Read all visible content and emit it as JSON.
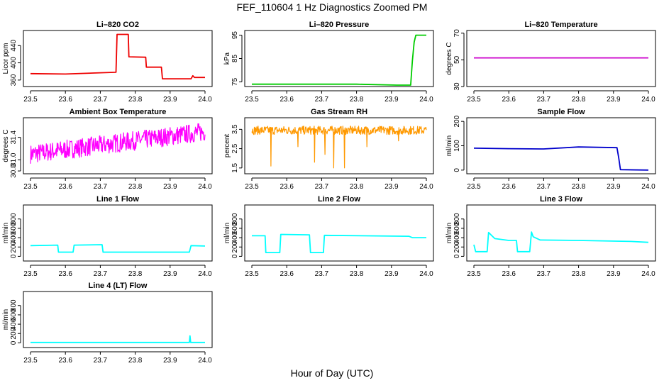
{
  "page": {
    "title": "FEF_110604  1 Hz Diagnostics Zoomed PM",
    "xlabel": "Hour of Day (UTC)"
  },
  "chart_data": [
    {
      "type": "line",
      "title": "Li–820 CO2",
      "ylabel": "Licor ppm",
      "color": "#ee0000",
      "xlim": [
        23.5,
        24.0
      ],
      "ylim": [
        345,
        475
      ],
      "xticks": [
        "23.5",
        "23.6",
        "23.7",
        "23.8",
        "23.9",
        "24.0"
      ],
      "yticks": [
        "360",
        "400",
        "440"
      ],
      "x": [
        23.5,
        23.6,
        23.7,
        23.745,
        23.748,
        23.78,
        23.782,
        23.83,
        23.832,
        23.875,
        23.878,
        23.96,
        23.965,
        23.97,
        24.0
      ],
      "y": [
        375,
        374,
        377,
        378,
        466,
        466,
        414,
        413,
        390,
        390,
        363,
        363,
        370,
        366,
        366
      ]
    },
    {
      "type": "line",
      "title": "Li–820 Pressure",
      "ylabel": "kPa",
      "color": "#00cc00",
      "xlim": [
        23.5,
        24.0
      ],
      "ylim": [
        73,
        97
      ],
      "xticks": [
        "23.5",
        "23.6",
        "23.7",
        "23.8",
        "23.9",
        "24.0"
      ],
      "yticks": [
        "75",
        "85",
        "95"
      ],
      "x": [
        23.5,
        23.6,
        23.7,
        23.8,
        23.915,
        23.955,
        23.96,
        23.965,
        23.97,
        23.98,
        24.0
      ],
      "y": [
        74,
        74,
        74,
        74,
        73.6,
        73.6,
        84,
        92,
        95,
        95,
        95
      ]
    },
    {
      "type": "line",
      "title": "Li–820 Temperature",
      "ylabel": "degrees C",
      "color": "#cc00cc",
      "xlim": [
        23.5,
        24.0
      ],
      "ylim": [
        30,
        72
      ],
      "xticks": [
        "23.5",
        "23.6",
        "23.7",
        "23.8",
        "23.9",
        "24.0"
      ],
      "yticks": [
        "30",
        "50",
        "70"
      ],
      "x": [
        23.5,
        24.0
      ],
      "y": [
        51.5,
        51.5
      ]
    },
    {
      "type": "line",
      "title": "Ambient Box Temperature",
      "ylabel": "degrees C",
      "color": "#ff00ff",
      "xlim": [
        23.5,
        24.0
      ],
      "ylim": [
        30.75,
        31.75
      ],
      "xticks": [
        "23.5",
        "23.6",
        "23.7",
        "23.8",
        "23.9",
        "24.0"
      ],
      "yticks": [
        "30.8",
        "31.0",
        "31.4"
      ],
      "x": [
        23.5,
        23.6,
        23.7,
        23.8,
        23.9,
        24.0
      ],
      "y": [
        31.1,
        31.18,
        31.26,
        31.34,
        31.42,
        31.5
      ],
      "noise": 0.17
    },
    {
      "type": "line",
      "title": "Gas Stream RH",
      "ylabel": "percent",
      "color": "#ff9900",
      "xlim": [
        23.5,
        24.0
      ],
      "ylim": [
        1.2,
        4.1
      ],
      "xticks": [
        "23.5",
        "23.6",
        "23.7",
        "23.8",
        "23.9",
        "24.0"
      ],
      "yticks": [
        "1.5",
        "2.5",
        "3.5"
      ],
      "x": [
        23.5,
        23.6,
        23.7,
        23.8,
        23.9,
        24.0
      ],
      "y": [
        3.45,
        3.45,
        3.45,
        3.45,
        3.45,
        3.45
      ],
      "noise": 0.22,
      "spikes": [
        [
          23.555,
          1.6
        ],
        [
          23.632,
          2.6
        ],
        [
          23.68,
          1.8
        ],
        [
          23.71,
          2.2
        ],
        [
          23.735,
          1.5
        ],
        [
          23.765,
          1.5
        ],
        [
          23.83,
          2.6
        ],
        [
          23.92,
          2.9
        ]
      ]
    },
    {
      "type": "line",
      "title": "Sample Flow",
      "ylabel": "ml/min",
      "color": "#0000cc",
      "xlim": [
        23.5,
        24.0
      ],
      "ylim": [
        -15,
        215
      ],
      "xticks": [
        "23.5",
        "23.6",
        "23.7",
        "23.8",
        "23.9",
        "24.0"
      ],
      "yticks": [
        "0",
        "100",
        "200"
      ],
      "x": [
        23.5,
        23.6,
        23.7,
        23.8,
        23.91,
        23.915,
        23.92,
        24.0
      ],
      "y": [
        90,
        88,
        87,
        95,
        92,
        50,
        2,
        0
      ]
    },
    {
      "type": "line",
      "title": "Line 1 Flow",
      "ylabel": "ml/min",
      "color": "#00ffff",
      "xlim": [
        23.5,
        24.0
      ],
      "ylim": [
        -100,
        1100
      ],
      "xticks": [
        "23.5",
        "23.6",
        "23.7",
        "23.8",
        "23.9",
        "24.0"
      ],
      "yticks": [
        "0",
        "200",
        "400",
        "600",
        "800"
      ],
      "x": [
        23.5,
        23.578,
        23.58,
        23.622,
        23.625,
        23.705,
        23.708,
        23.955,
        23.96,
        24.0
      ],
      "y": [
        230,
        240,
        90,
        90,
        240,
        250,
        90,
        90,
        230,
        220
      ]
    },
    {
      "type": "line",
      "title": "Line 2 Flow",
      "ylabel": "ml/min",
      "color": "#00ffff",
      "xlim": [
        23.5,
        24.0
      ],
      "ylim": [
        -100,
        1100
      ],
      "xticks": [
        "23.5",
        "23.6",
        "23.7",
        "23.8",
        "23.9",
        "24.0"
      ],
      "yticks": [
        "0",
        "200",
        "400",
        "600",
        "800"
      ],
      "x": [
        23.5,
        23.538,
        23.54,
        23.58,
        23.583,
        23.665,
        23.668,
        23.705,
        23.708,
        23.95,
        23.96,
        24.0
      ],
      "y": [
        440,
        440,
        80,
        80,
        470,
        460,
        80,
        80,
        450,
        430,
        400,
        400
      ]
    },
    {
      "type": "line",
      "title": "Line 3 Flow",
      "ylabel": "ml/min",
      "color": "#00ffff",
      "xlim": [
        23.5,
        24.0
      ],
      "ylim": [
        -100,
        1100
      ],
      "xticks": [
        "23.5",
        "23.6",
        "23.7",
        "23.8",
        "23.9",
        "24.0"
      ],
      "yticks": [
        "0",
        "200",
        "400",
        "600",
        "800"
      ],
      "x": [
        23.5,
        23.505,
        23.51,
        23.538,
        23.542,
        23.56,
        23.6,
        23.622,
        23.625,
        23.66,
        23.665,
        23.67,
        23.69,
        23.8,
        23.95,
        24.0
      ],
      "y": [
        250,
        100,
        100,
        100,
        510,
        380,
        340,
        340,
        100,
        100,
        520,
        420,
        350,
        340,
        320,
        300
      ]
    },
    {
      "type": "line",
      "title": "Line 4 (LT) Flow",
      "ylabel": "ml/min",
      "color": "#00ffff",
      "xlim": [
        23.5,
        24.0
      ],
      "ylim": [
        -100,
        1100
      ],
      "xticks": [
        "23.5",
        "23.6",
        "23.7",
        "23.8",
        "23.9",
        "24.0"
      ],
      "yticks": [
        "0",
        "200",
        "400",
        "600",
        "800"
      ],
      "x": [
        23.5,
        23.6,
        23.7,
        23.8,
        23.9,
        23.955,
        23.957,
        23.959,
        24.0
      ],
      "y": [
        10,
        10,
        10,
        10,
        10,
        10,
        150,
        10,
        10
      ]
    }
  ]
}
